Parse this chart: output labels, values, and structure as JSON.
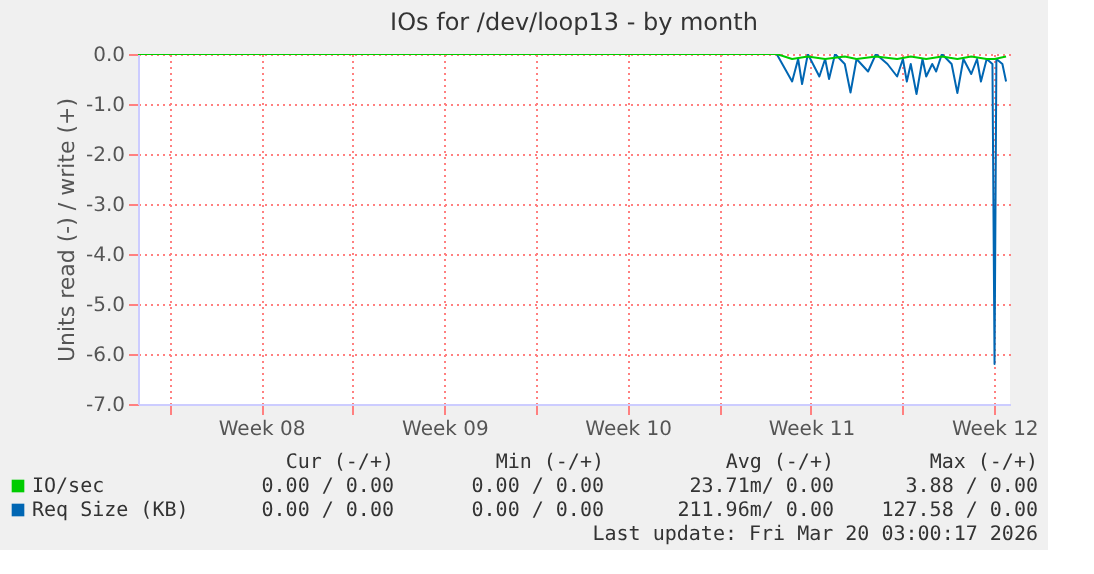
{
  "chart_data": {
    "type": "line",
    "title": "IOs for /dev/loop13 - by month",
    "ylabel": "Units read (-) / write (+)",
    "xlim": [
      "2026-02-14T19:12",
      "2026-03-20T02:24"
    ],
    "xticks": [
      {
        "value": "2026-02-16T00:00",
        "label": null
      },
      {
        "value": "2026-02-19T12:00",
        "label": "Week 08"
      },
      {
        "value": "2026-02-23T00:00",
        "label": null
      },
      {
        "value": "2026-02-26T12:00",
        "label": "Week 09"
      },
      {
        "value": "2026-03-02T00:00",
        "label": null
      },
      {
        "value": "2026-03-05T12:00",
        "label": "Week 10"
      },
      {
        "value": "2026-03-09T00:00",
        "label": null
      },
      {
        "value": "2026-03-12T12:00",
        "label": "Week 11"
      },
      {
        "value": "2026-03-16T00:00",
        "label": null
      },
      {
        "value": "2026-03-19T12:00",
        "label": "Week 12"
      }
    ],
    "ylim": [
      -7,
      0
    ],
    "yticks": [
      {
        "value": -7,
        "label": "-7.0"
      },
      {
        "value": -6,
        "label": "-6.0"
      },
      {
        "value": -5,
        "label": "-5.0"
      },
      {
        "value": -4,
        "label": "-4.0"
      },
      {
        "value": -3,
        "label": "-3.0"
      },
      {
        "value": -2,
        "label": "-2.0"
      },
      {
        "value": -1,
        "label": "-1.0"
      },
      {
        "value": 0,
        "label": "0.0"
      }
    ],
    "grid": true,
    "series": [
      {
        "name": "IO/sec",
        "color": "#00cc00",
        "x": [
          "2026-02-14T19:12",
          "2026-03-11T04:34",
          "2026-03-11T18:43",
          "2026-03-12T09:07",
          "2026-03-13T00:58",
          "2026-03-13T18:58",
          "2026-03-14T05:46",
          "2026-03-14T23:31",
          "2026-03-15T18:58",
          "2026-03-16T07:26",
          "2026-03-16T21:36",
          "2026-03-17T12:00",
          "2026-03-18T02:10",
          "2026-03-18T14:53",
          "2026-03-19T05:02",
          "2026-03-19T12:14",
          "2026-03-19T22:48"
        ],
        "values": [
          0,
          0,
          -0.1,
          -0.05,
          -0.1,
          -0.05,
          -0.1,
          -0.05,
          -0.1,
          -0.05,
          -0.1,
          -0.05,
          -0.1,
          -0.05,
          -0.1,
          -0.1,
          -0.05
        ]
      },
      {
        "name": "Req Size (KB)",
        "color": "#0066b3",
        "x": [
          "2026-02-14T19:12",
          "2026-03-11T04:34",
          "2026-03-11T18:43",
          "2026-03-12T00:14",
          "2026-03-12T03:50",
          "2026-03-12T09:07",
          "2026-03-12T19:41",
          "2026-03-13T00:58",
          "2026-03-13T04:34",
          "2026-03-13T10:05",
          "2026-03-13T18:58",
          "2026-03-14T00:14",
          "2026-03-14T05:46",
          "2026-03-14T16:19",
          "2026-03-14T23:31",
          "2026-03-15T10:05",
          "2026-03-15T18:58",
          "2026-03-16T00:14",
          "2026-03-16T03:50",
          "2026-03-16T07:26",
          "2026-03-16T12:43",
          "2026-03-16T18:14",
          "2026-03-16T21:36",
          "2026-03-17T03:07",
          "2026-03-17T06:43",
          "2026-03-17T12:00",
          "2026-03-17T20:53",
          "2026-03-18T02:10",
          "2026-03-18T07:41",
          "2026-03-18T14:53",
          "2026-03-18T20:10",
          "2026-03-18T23:46",
          "2026-03-19T05:02",
          "2026-03-19T10:19",
          "2026-03-19T12:14",
          "2026-03-19T13:55",
          "2026-03-19T19:26",
          "2026-03-19T22:48"
        ],
        "values": [
          0,
          0,
          -0.55,
          -0.1,
          -0.6,
          0,
          -0.45,
          -0.1,
          -0.5,
          0,
          -0.2,
          -0.77,
          -0.1,
          -0.35,
          0,
          -0.2,
          -0.45,
          -0.1,
          -0.55,
          -0.2,
          -0.8,
          -0.1,
          -0.45,
          -0.2,
          -0.35,
          0,
          -0.2,
          -0.78,
          -0.1,
          -0.4,
          -0.1,
          -0.55,
          -0.1,
          -0.2,
          -6.2,
          -0.1,
          -0.2,
          -0.55
        ]
      }
    ],
    "legend": "bottom",
    "annotations": [
      "Cur (-/+)",
      "Min (-/+)",
      "Avg (-/+)",
      "Max (-/+)",
      "0.00 /  0.00",
      "0.00 /  0.00",
      "23.71m/  0.00",
      "3.88 /  0.00",
      "0.00 /  0.00",
      "0.00 /  0.00",
      "211.96m/  0.00",
      "127.58 /  0.00",
      "Last update: Fri Mar 20 03:00:17 2026"
    ]
  }
}
